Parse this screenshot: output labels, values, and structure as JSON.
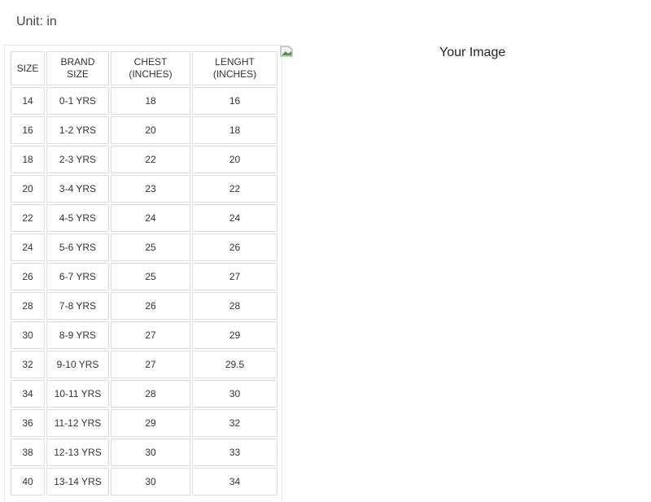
{
  "unit_label": "Unit: in",
  "image_alt": "Your Image",
  "table": {
    "headers": [
      [
        "SIZE",
        ""
      ],
      [
        "BRAND",
        "SIZE"
      ],
      [
        "CHEST",
        "(INCHES)"
      ],
      [
        "LENGHT",
        "(INCHES)"
      ]
    ],
    "rows": [
      [
        "14",
        "0-1 YRS",
        "18",
        "16"
      ],
      [
        "16",
        "1-2 YRS",
        "20",
        "18"
      ],
      [
        "18",
        "2-3 YRS",
        "22",
        "20"
      ],
      [
        "20",
        "3-4 YRS",
        "23",
        "22"
      ],
      [
        "22",
        "4-5 YRS",
        "24",
        "24"
      ],
      [
        "24",
        "5-6 YRS",
        "25",
        "26"
      ],
      [
        "26",
        "6-7 YRS",
        "25",
        "27"
      ],
      [
        "28",
        "7-8 YRS",
        "26",
        "28"
      ],
      [
        "30",
        "8-9 YRS",
        "27",
        "29"
      ],
      [
        "32",
        "9-10 YRS",
        "27",
        "29.5"
      ],
      [
        "34",
        "10-11 YRS",
        "28",
        "30"
      ],
      [
        "36",
        "11-12 YRS",
        "29",
        "32"
      ],
      [
        "38",
        "12-13 YRS",
        "30",
        "33"
      ],
      [
        "40",
        "13-14 YRS",
        "30",
        "34"
      ]
    ]
  }
}
